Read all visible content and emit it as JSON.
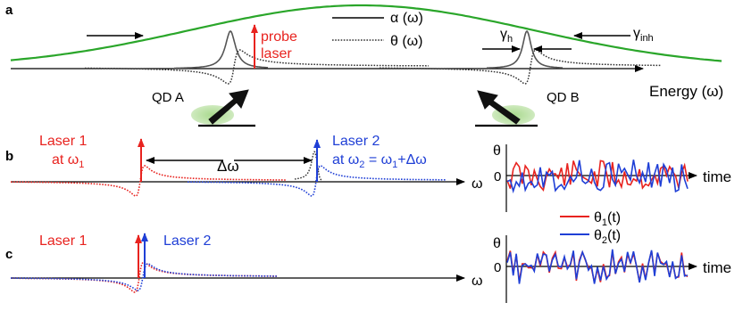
{
  "panels": {
    "a": {
      "label": "a",
      "probe_line1": "probe",
      "probe_line2": "laser",
      "legend": {
        "alpha": "α (ω)",
        "theta": "θ (ω)"
      },
      "gamma_h": "γ",
      "gamma_h_sub": "h",
      "gamma_inh": "γ",
      "gamma_inh_sub": "inh",
      "qd_a": "QD A",
      "qd_b": "QD B",
      "energy_axis": "Energy (ω)"
    },
    "b": {
      "label": "b",
      "laser1_line1": "Laser 1",
      "laser1_at": "at ω",
      "laser1_sub": "1",
      "laser2_line1": "Laser 2",
      "laser2_at": "at ω",
      "laser2_sub": "2",
      "laser2_rest": " = ω",
      "laser2_sub2": "1",
      "laser2_tail": "+Δω",
      "delta_omega": "Δω",
      "omega_axis": "ω",
      "theta_axis": "θ",
      "zero_tick": "0",
      "time_axis": "time",
      "legend_theta1": "θ",
      "legend_theta1_sub": "1",
      "legend_theta1_tail": "(t)",
      "legend_theta2": "θ",
      "legend_theta2_sub": "2",
      "legend_theta2_tail": "(t)"
    },
    "c": {
      "label": "c",
      "laser1": "Laser 1",
      "laser2": "Laser 2",
      "omega_axis": "ω",
      "theta_axis": "θ",
      "zero_tick": "0",
      "time_axis": "time"
    }
  },
  "colors": {
    "laser1": "#e8231f",
    "laser2": "#1f3fd6",
    "inhomogeneous": "#2aa62a",
    "axis": "#000000"
  }
}
